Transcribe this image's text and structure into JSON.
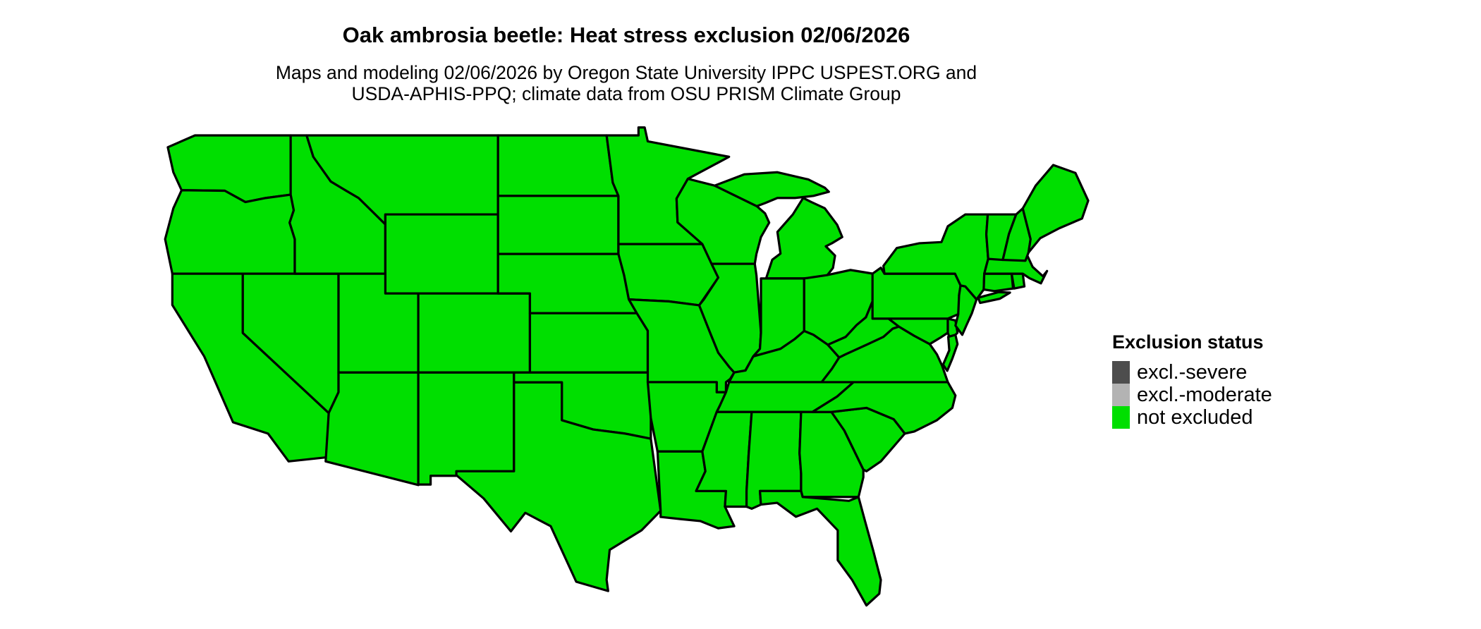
{
  "title": "Oak ambrosia beetle: Heat stress exclusion 02/06/2026",
  "subtitle_line1": "Maps and modeling 02/06/2026 by Oregon State University IPPC USPEST.ORG and",
  "subtitle_line2": "USDA-APHIS-PPQ; climate data from OSU PRISM Climate Group",
  "legend": {
    "heading": "Exclusion status",
    "items": [
      {
        "label": "excl.-severe",
        "color": "#4D4D4D"
      },
      {
        "label": "excl.-moderate",
        "color": "#B3B3B3"
      },
      {
        "label": "not excluded",
        "color": "#00DF00"
      }
    ]
  },
  "map": {
    "region": "Contiguous United States",
    "fill_color": "#00DF00",
    "border_color": "#000000",
    "background_color": "#FFFFFF",
    "status_everywhere": "not excluded"
  }
}
